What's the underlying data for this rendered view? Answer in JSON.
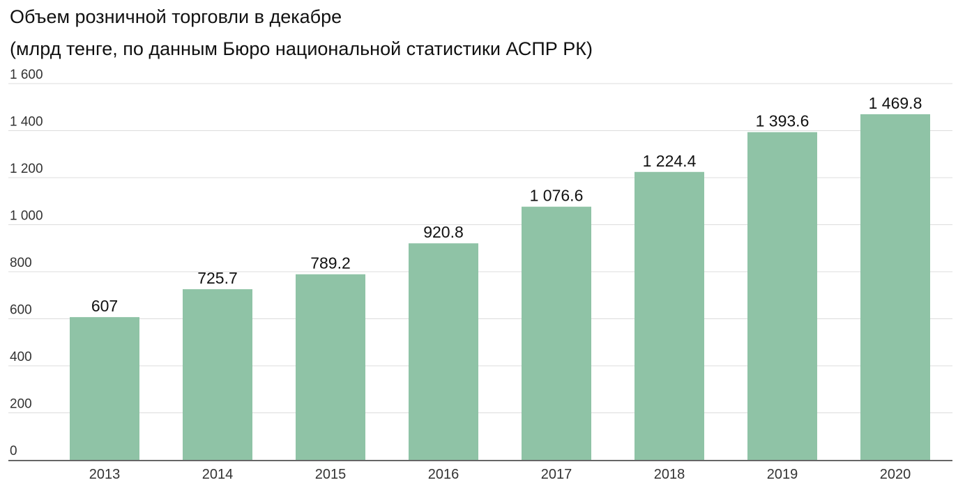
{
  "chart_data": {
    "type": "bar",
    "title": "Объем розничной торговли в декабре",
    "subtitle": "(млрд тенге, по данным Бюро национальной статистики АСПР РК)",
    "xlabel": "",
    "ylabel": "",
    "categories": [
      "2013",
      "2014",
      "2015",
      "2016",
      "2017",
      "2018",
      "2019",
      "2020"
    ],
    "values": [
      607,
      725.7,
      789.2,
      920.8,
      1076.6,
      1224.4,
      1393.6,
      1469.8
    ],
    "data_labels": [
      "607",
      "725.7",
      "789.2",
      "920.8",
      "1 076.6",
      "1 224.4",
      "1 393.6",
      "1 469.8"
    ],
    "yticks": [
      0,
      200,
      400,
      600,
      800,
      1000,
      1200,
      1400,
      1600
    ],
    "ytick_labels": [
      "0",
      "200",
      "400",
      "600",
      "800",
      "1 000",
      "1 200",
      "1 400",
      "1 600"
    ],
    "ylim": [
      0,
      1600
    ],
    "grid": true,
    "legend": "none",
    "bar_color": "#8fc3a6"
  }
}
